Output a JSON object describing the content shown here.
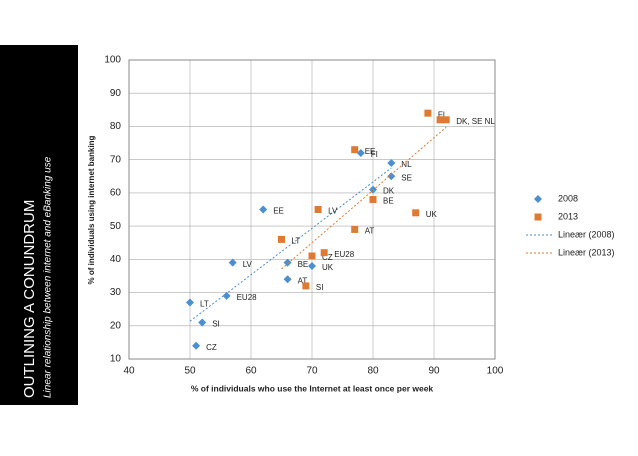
{
  "sidebar": {
    "title": "OUTLINING A CONUNDRUM",
    "subtitle": "Linear relationship between internet and eBanking use"
  },
  "chart_data": {
    "type": "scatter",
    "x_label": "% of individuals  who use the Internet at least once per week",
    "y_label": "% of individuals  using internet banking",
    "xlim": [
      40,
      100
    ],
    "ylim": [
      10,
      100
    ],
    "xticks": [
      40,
      50,
      60,
      70,
      80,
      90,
      100
    ],
    "yticks": [
      10,
      20,
      30,
      40,
      50,
      60,
      70,
      80,
      90,
      100
    ],
    "grid": true,
    "legend": "right",
    "series": [
      {
        "name": "2008",
        "color": "#4a8fd0",
        "marker": "diamond",
        "trendline": "Lineær (2008)",
        "x": [
          50,
          52,
          51,
          56,
          57,
          62,
          66,
          66,
          70,
          78,
          83,
          83,
          80
        ],
        "values": [
          27,
          21,
          14,
          29,
          39,
          55,
          39,
          34,
          38,
          72,
          69,
          65,
          61
        ],
        "labels": [
          "LT",
          "SI",
          "CZ",
          "EU28",
          "LV",
          "EE",
          "BE",
          "AT",
          "UK",
          "FI",
          "NL",
          "SE",
          "DK"
        ]
      },
      {
        "name": "2013",
        "color": "#e07a30",
        "marker": "square",
        "trendline": "Lineær (2013)",
        "x": [
          69,
          65,
          70,
          72,
          71,
          77,
          77,
          80,
          87,
          89,
          91,
          92
        ],
        "values": [
          32,
          46,
          41,
          42,
          55,
          49,
          73,
          58,
          54,
          84,
          82,
          82
        ],
        "labels": [
          "SI",
          "LT",
          "CZ",
          "EU28",
          "LV",
          "AT",
          "EE",
          "BE",
          "UK",
          "FI",
          null,
          "DK, SE NL"
        ]
      }
    ]
  }
}
